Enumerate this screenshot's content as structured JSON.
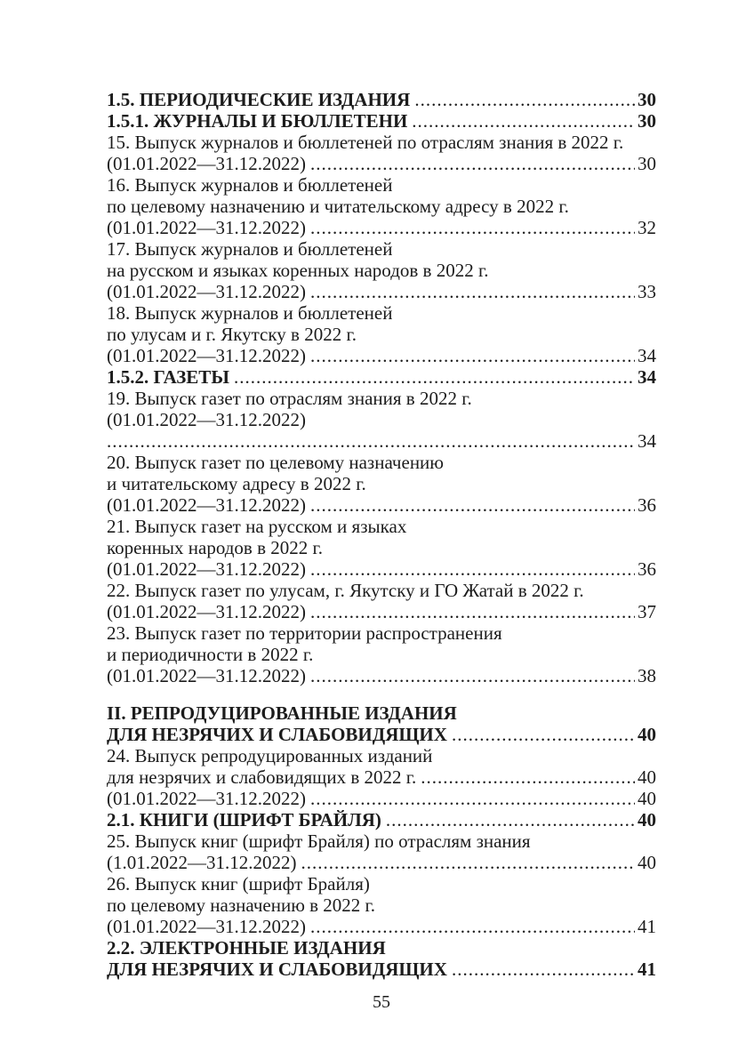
{
  "document": {
    "kind": "table-of-contents-page",
    "page_number": "55",
    "text_color": "#1c1c1c",
    "background_color": "#ffffff"
  },
  "toc": {
    "lines": [
      {
        "text": "1.5. ПЕРИОДИЧЕСКИЕ ИЗДАНИЯ",
        "page": "30",
        "bold": true,
        "gap_before": false
      },
      {
        "text": "1.5.1. ЖУРНАЛЫ И БЮЛЛЕТЕНИ",
        "page": "30",
        "bold": true,
        "gap_before": false
      },
      {
        "text": "15. Выпуск журналов и бюллетеней по отраслям знания в 2022 г.",
        "page": null,
        "bold": false,
        "gap_before": false
      },
      {
        "text": "(01.01.2022—31.12.2022)",
        "page": "30",
        "bold": false,
        "gap_before": false
      },
      {
        "text": "16. Выпуск журналов и бюллетеней",
        "page": null,
        "bold": false,
        "gap_before": false
      },
      {
        "text": "по целевому назначению и читательскому адресу в 2022 г.",
        "page": null,
        "bold": false,
        "gap_before": false
      },
      {
        "text": "(01.01.2022—31.12.2022)",
        "page": "32",
        "bold": false,
        "gap_before": false
      },
      {
        "text": "17. Выпуск журналов и бюллетеней",
        "page": null,
        "bold": false,
        "gap_before": false
      },
      {
        "text": "на русском и языках коренных народов в 2022 г.",
        "page": null,
        "bold": false,
        "gap_before": false
      },
      {
        "text": "(01.01.2022—31.12.2022)",
        "page": "33",
        "bold": false,
        "gap_before": false
      },
      {
        "text": "18. Выпуск журналов и бюллетеней",
        "page": null,
        "bold": false,
        "gap_before": false
      },
      {
        "text": "по улусам и г. Якутску в 2022 г.",
        "page": null,
        "bold": false,
        "gap_before": false
      },
      {
        "text": "(01.01.2022—31.12.2022)",
        "page": "34",
        "bold": false,
        "gap_before": false
      },
      {
        "text": "1.5.2. ГАЗЕТЫ",
        "page": "34",
        "bold": true,
        "gap_before": false
      },
      {
        "text": "19. Выпуск газет по отраслям знания в 2022 г.",
        "page": null,
        "bold": false,
        "gap_before": false
      },
      {
        "text": "(01.01.2022—31.12.2022)",
        "page": null,
        "bold": false,
        "gap_before": false
      },
      {
        "text": "",
        "page": "34",
        "bold": false,
        "gap_before": false
      },
      {
        "text": "20. Выпуск газет по целевому назначению",
        "page": null,
        "bold": false,
        "gap_before": false
      },
      {
        "text": "и читательскому адресу в 2022 г.",
        "page": null,
        "bold": false,
        "gap_before": false
      },
      {
        "text": "(01.01.2022—31.12.2022)",
        "page": "36",
        "bold": false,
        "gap_before": false
      },
      {
        "text": "21. Выпуск газет на русском и языках",
        "page": null,
        "bold": false,
        "gap_before": false
      },
      {
        "text": "коренных народов в 2022 г.",
        "page": null,
        "bold": false,
        "gap_before": false
      },
      {
        "text": "(01.01.2022—31.12.2022)",
        "page": "36",
        "bold": false,
        "gap_before": false
      },
      {
        "text": "22. Выпуск газет по улусам, г. Якутску и ГО Жатай в 2022 г.",
        "page": null,
        "bold": false,
        "gap_before": false
      },
      {
        "text": "(01.01.2022—31.12.2022)",
        "page": "37",
        "bold": false,
        "gap_before": false
      },
      {
        "text": "23. Выпуск газет по территории распространения",
        "page": null,
        "bold": false,
        "gap_before": false
      },
      {
        "text": "и периодичности в 2022 г.",
        "page": null,
        "bold": false,
        "gap_before": false
      },
      {
        "text": "(01.01.2022—31.12.2022)",
        "page": "38",
        "bold": false,
        "gap_before": false
      },
      {
        "text": "II. РЕПРОДУЦИРОВАННЫЕ ИЗДАНИЯ",
        "page": null,
        "bold": true,
        "gap_before": true
      },
      {
        "text": "ДЛЯ НЕЗРЯЧИХ И СЛАБОВИДЯЩИХ",
        "page": "40",
        "bold": true,
        "gap_before": false
      },
      {
        "text": "24. Выпуск репродуцированных изданий",
        "page": null,
        "bold": false,
        "gap_before": false
      },
      {
        "text": "для незрячих и слабовидящих в 2022 г.",
        "page": "40",
        "bold": false,
        "gap_before": false
      },
      {
        "text": "(01.01.2022—31.12.2022)",
        "page": "40",
        "bold": false,
        "gap_before": false
      },
      {
        "text": "2.1. КНИГИ (ШРИФТ БРАЙЛЯ)",
        "page": "40",
        "bold": true,
        "gap_before": false
      },
      {
        "text": "25. Выпуск книг (шрифт Брайля) по отраслям знания",
        "page": null,
        "bold": false,
        "gap_before": false
      },
      {
        "text": "(1.01.2022—31.12.2022)",
        "page": "40",
        "bold": false,
        "gap_before": false
      },
      {
        "text": "26. Выпуск книг (шрифт Брайля)",
        "page": null,
        "bold": false,
        "gap_before": false
      },
      {
        "text": "по целевому назначению в 2022 г.",
        "page": null,
        "bold": false,
        "gap_before": false
      },
      {
        "text": "(01.01.2022—31.12.2022)",
        "page": "41",
        "bold": false,
        "gap_before": false
      },
      {
        "text": "2.2. ЭЛЕКТРОННЫЕ ИЗДАНИЯ",
        "page": null,
        "bold": true,
        "gap_before": false
      },
      {
        "text": "ДЛЯ НЕЗРЯЧИХ И СЛАБОВИДЯЩИХ",
        "page": "41",
        "bold": true,
        "gap_before": false
      }
    ]
  }
}
